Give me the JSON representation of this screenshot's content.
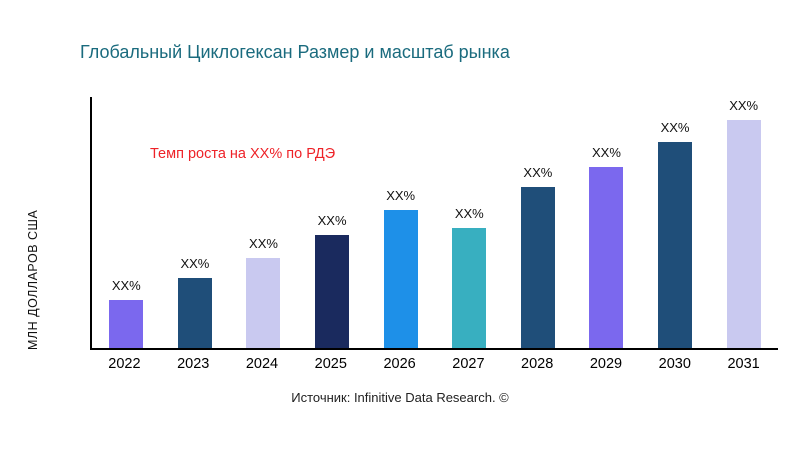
{
  "title": "Глобальный Циклогексан Размер и масштаб рынка",
  "ylabel": "МЛН ДОЛЛАРОВ США",
  "annotation": "Темп роста на XX% по РДЭ",
  "source": "Источник: Infinitive Data Research. ©",
  "chart_data": {
    "type": "bar",
    "title": "Глобальный Циклогексан Размер и масштаб рынка",
    "xlabel": "",
    "ylabel": "МЛН ДОЛЛАРОВ США",
    "ylim": [
      0,
      100
    ],
    "grid": false,
    "legend": "none",
    "categories": [
      "2022",
      "2023",
      "2024",
      "2025",
      "2026",
      "2027",
      "2028",
      "2029",
      "2030",
      "2031"
    ],
    "values": [
      19,
      28,
      36,
      45,
      55,
      48,
      64,
      72,
      82,
      91
    ],
    "bar_labels": [
      "XX%",
      "XX%",
      "XX%",
      "XX%",
      "XX%",
      "XX%",
      "XX%",
      "XX%",
      "XX%",
      "XX%"
    ],
    "colors": [
      "#7b68ee",
      "#1f4e79",
      "#c9c9f0",
      "#1a2a5e",
      "#1e90e8",
      "#38afc0",
      "#1f4e79",
      "#7b68ee",
      "#1f4e79",
      "#c9c9f0"
    ],
    "annotation": "Темп роста на XX% по РДЭ",
    "annotation_color": "#ee2228",
    "title_color": "#1a6b7e",
    "source": "Источник: Infinitive Data Research. ©"
  }
}
